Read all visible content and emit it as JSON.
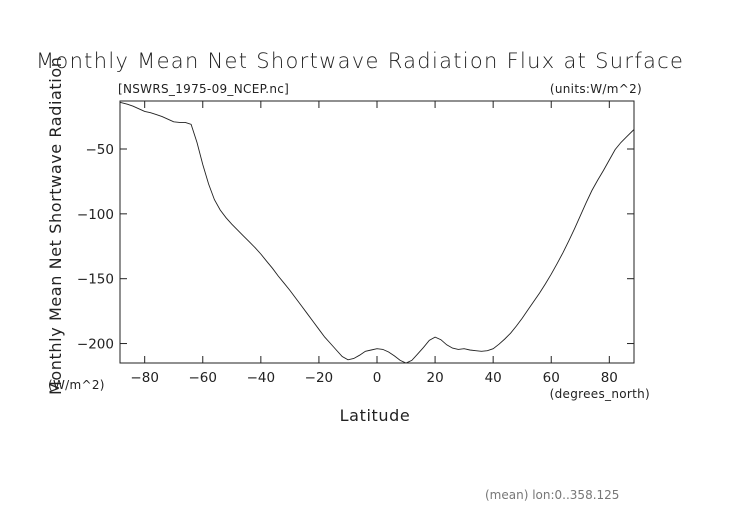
{
  "chart_data": {
    "type": "line",
    "title": "Monthly Mean Net Shortwave Radiation Flux at Surface",
    "file_label": "[NSWRS_1975-09_NCEP.nc]",
    "units_label": "(units:W/m^2)",
    "xlabel": "Latitude",
    "x_units": "(degrees_north)",
    "ylabel": "Monthly Mean Net Shortwave Radiation",
    "y_units": "(W/m^2)",
    "footer": "(mean) lon:0..358.125",
    "xlim": [
      -88.5,
      88.5
    ],
    "ylim": [
      -215,
      -13
    ],
    "xticks": [
      -80,
      -60,
      -40,
      -20,
      0,
      20,
      40,
      60,
      80
    ],
    "xtick_labels": [
      "−80",
      "−60",
      "−40",
      "−20",
      "0",
      "20",
      "40",
      "60",
      "80"
    ],
    "yticks": [
      -50,
      -100,
      -150,
      -200
    ],
    "ytick_labels": [
      "−50",
      "−100",
      "−150",
      "−200"
    ],
    "grid": false,
    "series": [
      {
        "x": [
          -88.5,
          -86,
          -84,
          -82,
          -80,
          -78,
          -76,
          -74,
          -72,
          -70,
          -68,
          -66,
          -64,
          -62,
          -60,
          -58,
          -56,
          -54,
          -52,
          -50,
          -48,
          -46,
          -44,
          -42,
          -40,
          -38,
          -36,
          -34,
          -32,
          -30,
          -28,
          -26,
          -24,
          -22,
          -20,
          -18,
          -16,
          -14,
          -12,
          -10,
          -8,
          -6,
          -4,
          -2,
          0,
          2,
          4,
          6,
          8,
          10,
          12,
          14,
          16,
          18,
          20,
          22,
          24,
          26,
          28,
          30,
          32,
          34,
          36,
          38,
          40,
          42,
          44,
          46,
          48,
          50,
          52,
          54,
          56,
          58,
          60,
          62,
          64,
          66,
          68,
          70,
          72,
          74,
          76,
          78,
          80,
          82,
          84,
          86,
          88.5
        ],
        "y": [
          -14,
          -15.5,
          -17,
          -19,
          -21,
          -22,
          -23.5,
          -25,
          -27,
          -29,
          -29.5,
          -29.5,
          -31,
          -45,
          -62,
          -77,
          -89,
          -97,
          -103,
          -108,
          -112.5,
          -117,
          -121.5,
          -126,
          -131,
          -136.5,
          -142,
          -148,
          -153.5,
          -159,
          -165,
          -171,
          -177,
          -183,
          -189,
          -195,
          -200,
          -205,
          -210,
          -212.5,
          -211.5,
          -209,
          -206,
          -205,
          -204,
          -204.5,
          -206.5,
          -209.5,
          -213,
          -215,
          -213,
          -208,
          -203,
          -197.5,
          -195,
          -197,
          -201,
          -203.5,
          -204.5,
          -204,
          -205,
          -205.5,
          -206,
          -205.5,
          -204,
          -200.5,
          -196.5,
          -192,
          -186.5,
          -180.5,
          -174,
          -167.5,
          -161,
          -154,
          -146.5,
          -138.5,
          -130,
          -121,
          -111.5,
          -101.5,
          -91.5,
          -82,
          -74,
          -66.5,
          -58.5,
          -50.5,
          -45,
          -40.5,
          -35
        ]
      }
    ]
  }
}
